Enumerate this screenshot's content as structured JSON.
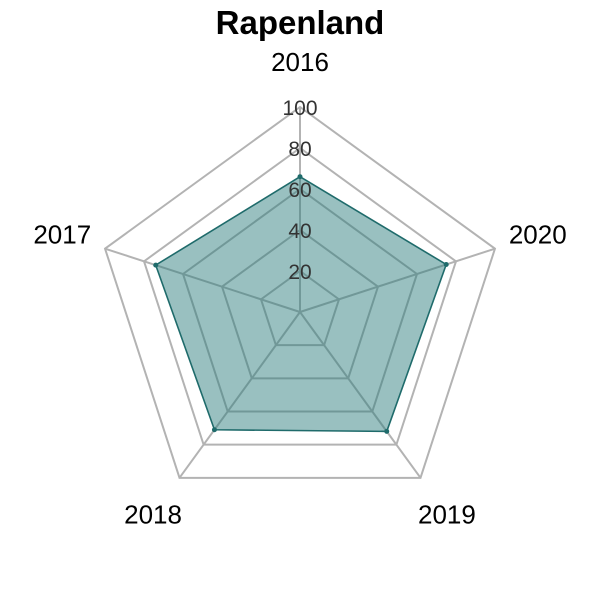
{
  "chart_data": {
    "type": "radar",
    "title": "Rapenland",
    "axes": [
      "2016",
      "2017",
      "2018",
      "2019",
      "2020"
    ],
    "series": [
      {
        "values": [
          66,
          74,
          71,
          72,
          75
        ]
      }
    ],
    "rlim": [
      0,
      100
    ],
    "ticks": [
      20,
      40,
      60,
      80,
      100
    ],
    "tick_labels": [
      "20",
      "40",
      "60",
      "80",
      "100"
    ],
    "grid": true,
    "colors": {
      "series_fill": "#2a7b7b",
      "series_stroke": "#1f6b6b",
      "grid": "#b3b3b3",
      "tick_text": "#333333"
    }
  }
}
